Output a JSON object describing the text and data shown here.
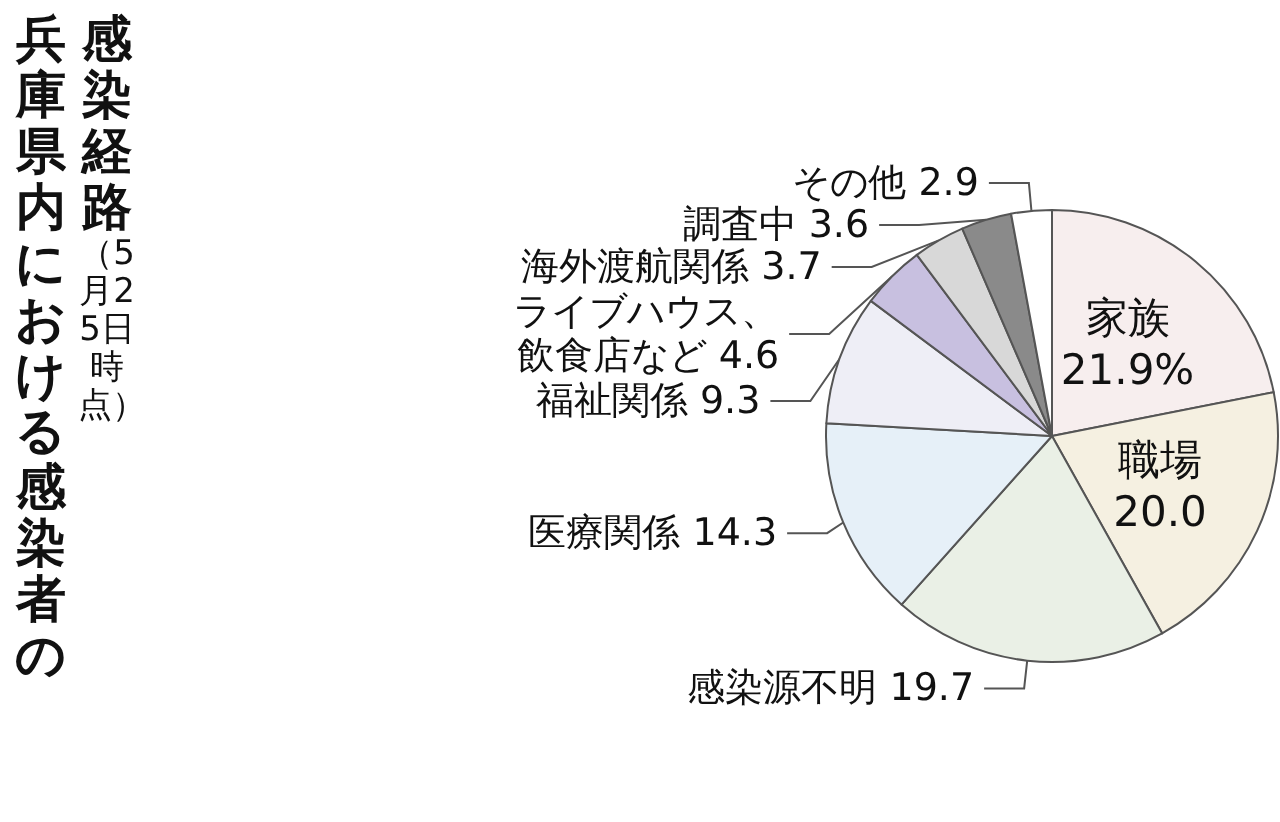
{
  "chart_data": {
    "type": "pie",
    "title": "兵庫県内における感染者の感染経路",
    "subtitle": "（5月25日時点）",
    "categories": [
      "家族",
      "職場",
      "感染源不明",
      "医療関係",
      "福祉関係",
      "ライブハウス、飲食店など",
      "海外渡航関係",
      "調査中",
      "その他"
    ],
    "values": [
      21.9,
      20.0,
      19.7,
      14.3,
      9.3,
      4.6,
      3.7,
      3.6,
      2.9
    ],
    "value_labels": [
      "21.9%",
      "20.0",
      "19.7",
      "14.3",
      "9.3",
      "4.6",
      "3.7",
      "3.6",
      "2.9"
    ],
    "colors": [
      "#f7eeee",
      "#f5f0e1",
      "#eaf0e6",
      "#e6f0f8",
      "#eeeef6",
      "#c8c0e0",
      "#d8d8d8",
      "#8a8a8a",
      "#ffffff"
    ]
  }
}
